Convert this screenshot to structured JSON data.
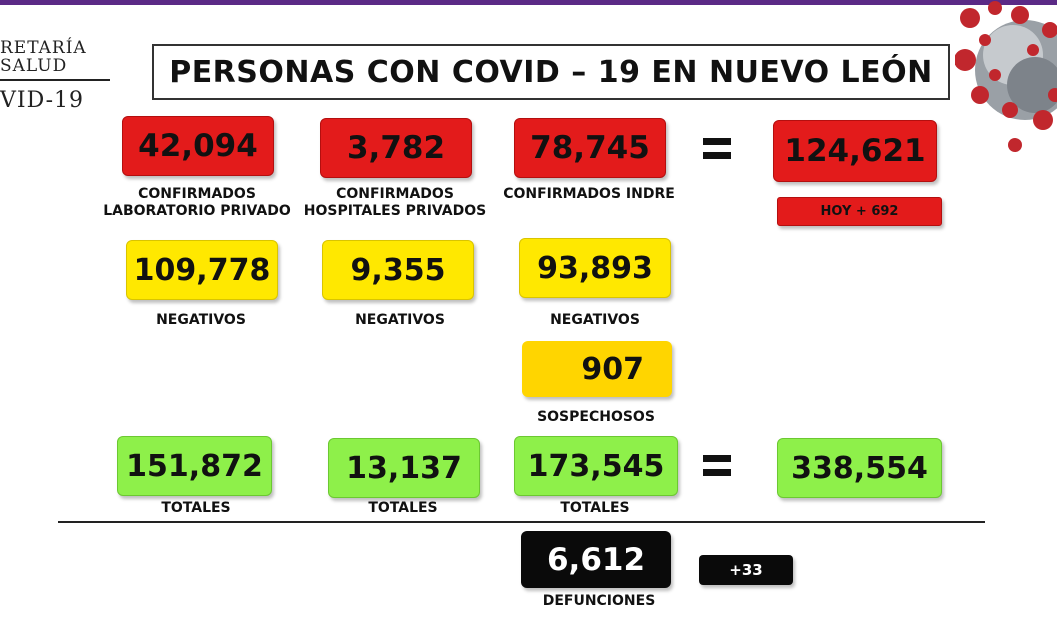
{
  "header": {
    "logo_line1": "RETARÍA",
    "logo_line2": "SALUD",
    "logo_line3": "VID-19",
    "title": "PERSONAS CON COVID – 19 EN NUEVO LEÓN"
  },
  "confirmed": {
    "lab_privado": {
      "value": "42,094",
      "label_line1": "CONFIRMADOS",
      "label_line2": "LABORATORIO PRIVADO"
    },
    "hosp_privados": {
      "value": "3,782",
      "label_line1": "CONFIRMADOS",
      "label_line2": "HOSPITALES PRIVADOS"
    },
    "indre": {
      "value": "78,745",
      "label": "CONFIRMADOS INDRE"
    },
    "total": {
      "value": "124,621",
      "today": "HOY + 692"
    }
  },
  "negatives": {
    "lab_privado": {
      "value": "109,778",
      "label": "NEGATIVOS"
    },
    "hosp_privados": {
      "value": "9,355",
      "label": "NEGATIVOS"
    },
    "indre": {
      "value": "93,893",
      "label": "NEGATIVOS"
    }
  },
  "suspects": {
    "value": "907",
    "label": "SOSPECHOSOS"
  },
  "totals": {
    "lab_privado": {
      "value": "151,872",
      "label": "TOTALES"
    },
    "hosp_privados": {
      "value": "13,137",
      "label": "TOTALES"
    },
    "indre": {
      "value": "173,545",
      "label": "TOTALES"
    },
    "grand_total": {
      "value": "338,554"
    }
  },
  "deaths": {
    "value": "6,612",
    "label": "DEFUNCIONES",
    "today": "+33"
  },
  "colors": {
    "red": "#e31b1b",
    "yellow": "#ffe800",
    "green": "#8ef04a",
    "black": "#0a0a0a",
    "purple_bar": "#5b2a86"
  },
  "icons": [
    "virus-image",
    "equals-sign"
  ]
}
